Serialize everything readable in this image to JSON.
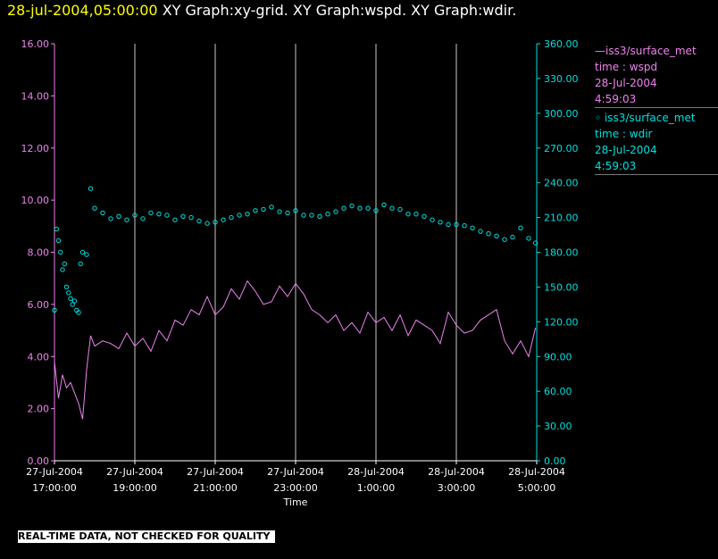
{
  "header": {
    "timestamp": "28-jul-2004,05:00:00",
    "graphs": "XY Graph:xy-grid.  XY Graph:wspd.  XY Graph:wdir."
  },
  "legend": [
    {
      "line1": "—iss3/surface_met",
      "line2": "time : wspd",
      "line3": "28-Jul-2004",
      "line4": "4:59:03"
    },
    {
      "line1": "◦ iss3/surface_met",
      "line2": "time : wdir",
      "line3": "28-Jul-2004",
      "line4": "4:59:03"
    }
  ],
  "warning": "REAL-TIME DATA, NOT CHECKED FOR QUALITY",
  "colors": {
    "wspd": "#ee82ee",
    "wdir": "#00e0e0",
    "grid": "#c8c8c8",
    "axis": "#ffffff"
  },
  "chart_data": {
    "type": "line",
    "xlabel": "Time",
    "x_range_hours": [
      17,
      29
    ],
    "x_ticks": [
      {
        "h": 17,
        "l1": "27-Jul-2004",
        "l2": "17:00:00"
      },
      {
        "h": 19,
        "l1": "27-Jul-2004",
        "l2": "19:00:00"
      },
      {
        "h": 21,
        "l1": "27-Jul-2004",
        "l2": "21:00:00"
      },
      {
        "h": 23,
        "l1": "27-Jul-2004",
        "l2": "23:00:00"
      },
      {
        "h": 25,
        "l1": "28-Jul-2004",
        "l2": "1:00:00"
      },
      {
        "h": 27,
        "l1": "28-Jul-2004",
        "l2": "3:00:00"
      },
      {
        "h": 29,
        "l1": "28-Jul-2004",
        "l2": "5:00:00"
      }
    ],
    "y_left": {
      "min": 0,
      "max": 16,
      "ticks": [
        "0.00",
        "2.00",
        "4.00",
        "6.00",
        "8.00",
        "10.00",
        "12.00",
        "14.00",
        "16.00"
      ]
    },
    "y_right": {
      "min": 0,
      "max": 360,
      "ticks": [
        "0.00",
        "30.00",
        "60.00",
        "90.00",
        "120.00",
        "150.00",
        "180.00",
        "210.00",
        "240.00",
        "270.00",
        "300.00",
        "330.00",
        "360.00"
      ]
    },
    "series": [
      {
        "name": "iss3/surface_met time : wspd",
        "axis": "left",
        "style": "line",
        "x": [
          17.0,
          17.1,
          17.2,
          17.3,
          17.4,
          17.5,
          17.6,
          17.7,
          17.8,
          17.9,
          18.0,
          18.2,
          18.4,
          18.6,
          18.8,
          19.0,
          19.2,
          19.4,
          19.6,
          19.8,
          20.0,
          20.2,
          20.4,
          20.6,
          20.8,
          21.0,
          21.2,
          21.4,
          21.6,
          21.8,
          22.0,
          22.2,
          22.4,
          22.6,
          22.8,
          23.0,
          23.2,
          23.4,
          23.6,
          23.8,
          24.0,
          24.2,
          24.4,
          24.6,
          24.8,
          25.0,
          25.2,
          25.4,
          25.6,
          25.8,
          26.0,
          26.2,
          26.4,
          26.6,
          26.8,
          27.0,
          27.2,
          27.4,
          27.6,
          27.8,
          28.0,
          28.2,
          28.4,
          28.6,
          28.8,
          28.97
        ],
        "y": [
          3.8,
          2.4,
          3.3,
          2.8,
          3.0,
          2.6,
          2.2,
          1.6,
          3.5,
          4.8,
          4.4,
          4.6,
          4.5,
          4.3,
          4.9,
          4.4,
          4.7,
          4.2,
          5.0,
          4.6,
          5.4,
          5.2,
          5.8,
          5.6,
          6.3,
          5.6,
          5.9,
          6.6,
          6.2,
          6.9,
          6.5,
          6.0,
          6.1,
          6.7,
          6.3,
          6.8,
          6.4,
          5.8,
          5.6,
          5.3,
          5.6,
          5.0,
          5.3,
          4.9,
          5.7,
          5.3,
          5.5,
          5.0,
          5.6,
          4.8,
          5.4,
          5.2,
          5.0,
          4.5,
          5.7,
          5.2,
          4.9,
          5.0,
          5.4,
          5.6,
          5.8,
          4.6,
          4.1,
          4.6,
          4.0,
          5.1
        ]
      },
      {
        "name": "iss3/surface_met time : wdir",
        "axis": "right",
        "style": "markers",
        "x": [
          17.0,
          17.05,
          17.1,
          17.15,
          17.2,
          17.25,
          17.3,
          17.35,
          17.4,
          17.45,
          17.5,
          17.55,
          17.6,
          17.65,
          17.7,
          17.8,
          17.9,
          18.0,
          18.2,
          18.4,
          18.6,
          18.8,
          19.0,
          19.2,
          19.4,
          19.6,
          19.8,
          20.0,
          20.2,
          20.4,
          20.6,
          20.8,
          21.0,
          21.2,
          21.4,
          21.6,
          21.8,
          22.0,
          22.2,
          22.4,
          22.6,
          22.8,
          23.0,
          23.2,
          23.4,
          23.6,
          23.8,
          24.0,
          24.2,
          24.4,
          24.6,
          24.8,
          25.0,
          25.2,
          25.4,
          25.6,
          25.8,
          26.0,
          26.2,
          26.4,
          26.6,
          26.8,
          27.0,
          27.2,
          27.4,
          27.6,
          27.8,
          28.0,
          28.2,
          28.4,
          28.6,
          28.8,
          28.97
        ],
        "y": [
          130,
          200,
          190,
          180,
          165,
          170,
          150,
          145,
          140,
          135,
          138,
          130,
          128,
          170,
          180,
          178,
          235,
          218,
          214,
          209,
          211,
          208,
          212,
          209,
          214,
          213,
          212,
          208,
          211,
          210,
          207,
          205,
          206,
          208,
          210,
          212,
          213,
          216,
          217,
          219,
          215,
          214,
          216,
          212,
          212,
          211,
          213,
          215,
          218,
          220,
          218,
          218,
          216,
          221,
          218,
          217,
          213,
          213,
          211,
          208,
          206,
          204,
          204,
          203,
          201,
          198,
          196,
          194,
          191,
          193,
          201,
          192,
          188
        ]
      }
    ]
  }
}
